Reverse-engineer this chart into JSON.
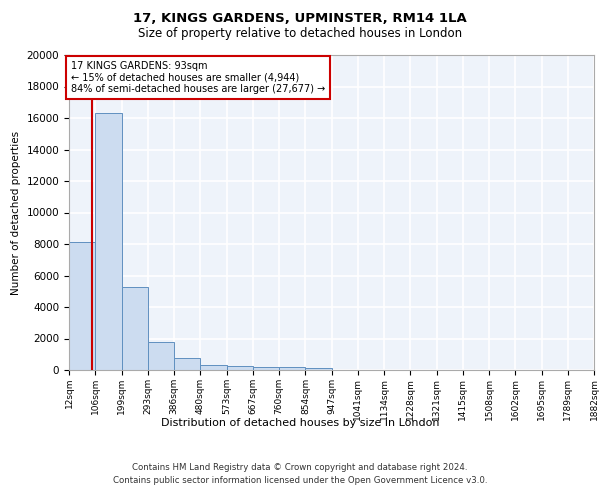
{
  "title_line1": "17, KINGS GARDENS, UPMINSTER, RM14 1LA",
  "title_line2": "Size of property relative to detached houses in London",
  "xlabel": "Distribution of detached houses by size in London",
  "ylabel": "Number of detached properties",
  "bar_edges": [
    12,
    106,
    199,
    293,
    386,
    480,
    573,
    667,
    760,
    854,
    947,
    1041,
    1134,
    1228,
    1321,
    1415,
    1508,
    1602,
    1695,
    1789,
    1882
  ],
  "bar_heights": [
    8100,
    16300,
    5300,
    1800,
    750,
    320,
    230,
    200,
    170,
    150,
    0,
    0,
    0,
    0,
    0,
    0,
    0,
    0,
    0,
    0
  ],
  "bar_color": "#ccdcf0",
  "bar_edge_color": "#6090c0",
  "property_line_x": 93,
  "property_line_color": "#cc0000",
  "annotation_text": "17 KINGS GARDENS: 93sqm\n← 15% of detached houses are smaller (4,944)\n84% of semi-detached houses are larger (27,677) →",
  "annotation_box_color": "#ffffff",
  "annotation_box_edge": "#cc0000",
  "ylim": [
    0,
    20000
  ],
  "yticks": [
    0,
    2000,
    4000,
    6000,
    8000,
    10000,
    12000,
    14000,
    16000,
    18000,
    20000
  ],
  "bg_color": "#eef3fa",
  "grid_color": "#ffffff",
  "footer_line1": "Contains HM Land Registry data © Crown copyright and database right 2024.",
  "footer_line2": "Contains public sector information licensed under the Open Government Licence v3.0."
}
